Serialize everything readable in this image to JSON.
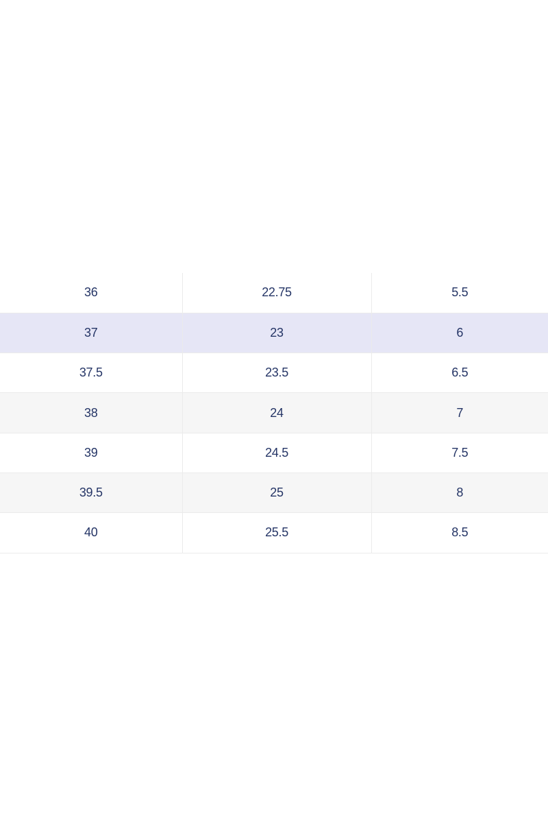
{
  "colors": {
    "text": "#253566",
    "row_selected": "#e6e6f6",
    "row_alt": "#f6f6f6",
    "border": "#ebebeb"
  },
  "size_table": {
    "rows": [
      [
        "36",
        "22.75",
        "5.5"
      ],
      [
        "37",
        "23",
        "6"
      ],
      [
        "37.5",
        "23.5",
        "6.5"
      ],
      [
        "38",
        "24",
        "7"
      ],
      [
        "39",
        "24.5",
        "7.5"
      ],
      [
        "39.5",
        "25",
        "8"
      ],
      [
        "40",
        "25.5",
        "8.5"
      ]
    ],
    "selected_row": 1
  }
}
